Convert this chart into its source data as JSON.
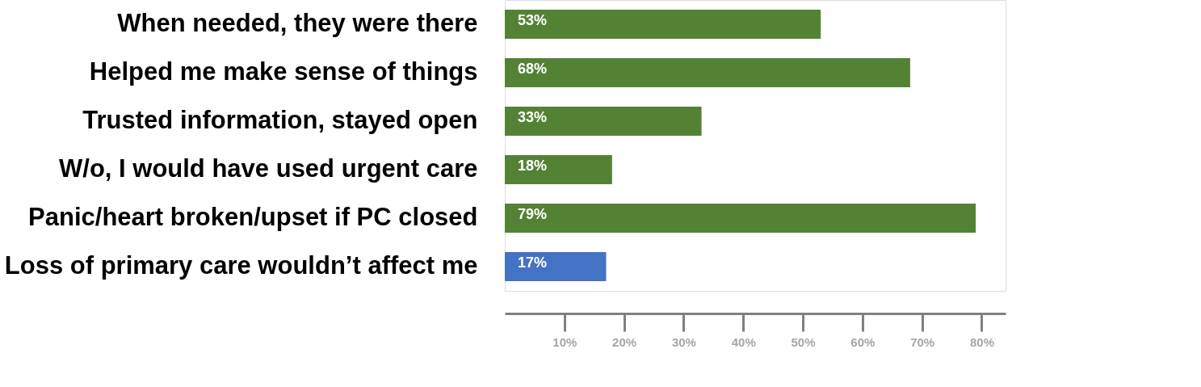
{
  "chart_data": {
    "type": "bar",
    "orientation": "horizontal",
    "categories": [
      "When needed, they were there",
      "Helped me make sense of things",
      "Trusted information, stayed open",
      "W/o, I would have used urgent care",
      "Panic/heart broken/upset if PC closed",
      "Loss of primary care wouldn’t affect me"
    ],
    "values": [
      53,
      68,
      33,
      18,
      79,
      17
    ],
    "colors": [
      "#548235",
      "#548235",
      "#548235",
      "#548235",
      "#548235",
      "#4472c4"
    ],
    "value_labels": [
      "53%",
      "68%",
      "33%",
      "18%",
      "79%",
      "17%"
    ],
    "xlim": [
      0,
      84
    ],
    "xticks": [
      {
        "value": 10,
        "label": "10%"
      },
      {
        "value": 20,
        "label": "20%"
      },
      {
        "value": 30,
        "label": "30%"
      },
      {
        "value": 40,
        "label": "40%"
      },
      {
        "value": 50,
        "label": "50%"
      },
      {
        "value": 60,
        "label": "60%"
      },
      {
        "value": 70,
        "label": "70%"
      },
      {
        "value": 80,
        "label": "80%"
      }
    ],
    "grid": false
  }
}
